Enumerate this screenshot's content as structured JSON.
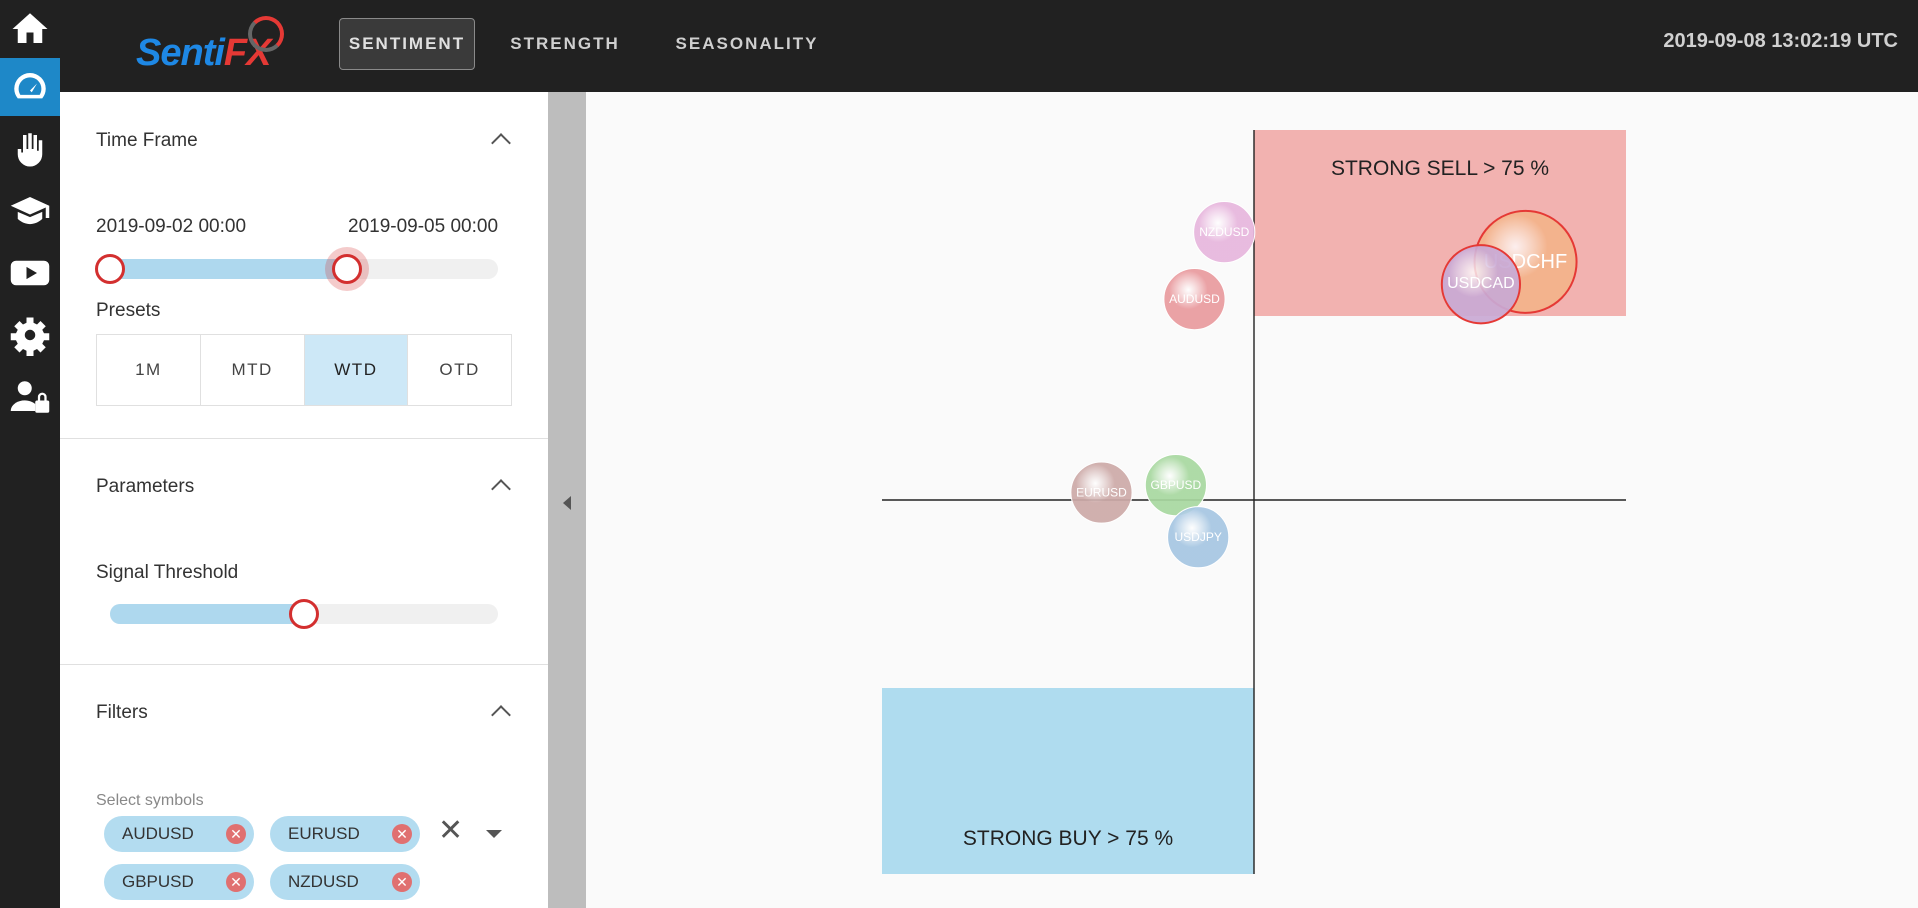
{
  "app": {
    "brand_left": "Senti",
    "brand_right": "FX"
  },
  "rail": {
    "items": [
      {
        "name": "home-icon",
        "active": false
      },
      {
        "name": "dashboard-gauge-icon",
        "active": true
      },
      {
        "name": "hand-stop-icon",
        "active": false
      },
      {
        "name": "graduation-cap-icon",
        "active": false
      },
      {
        "name": "video-play-icon",
        "active": false
      },
      {
        "name": "puzzle-gear-icon",
        "active": false
      },
      {
        "name": "user-lock-icon",
        "active": false
      }
    ]
  },
  "nav": {
    "tabs": [
      {
        "label": "SENTIMENT",
        "active": true
      },
      {
        "label": "STRENGTH",
        "active": false
      },
      {
        "label": "SEASONALITY",
        "active": false
      }
    ],
    "datetime": "2019-09-08 13:02:19 UTC"
  },
  "sidebar": {
    "timeframe": {
      "title": "Time Frame",
      "start_label": "2019-09-02 00:00",
      "end_label": "2019-09-05 00:00",
      "range_start_fraction": 0.0,
      "range_end_fraction": 0.61
    },
    "presets": {
      "title": "Presets",
      "options": [
        {
          "label": "1M",
          "active": false
        },
        {
          "label": "MTD",
          "active": false
        },
        {
          "label": "WTD",
          "active": true
        },
        {
          "label": "OTD",
          "active": false
        }
      ]
    },
    "parameters": {
      "title": "Parameters",
      "threshold_label": "Signal Threshold",
      "threshold_fraction": 0.5
    },
    "filters": {
      "title": "Filters",
      "select_label": "Select symbols",
      "chips": [
        "AUDUSD",
        "EURUSD",
        "GBPUSD",
        "NZDUSD"
      ],
      "clear_glyph": "✕",
      "chip_remove_glyph": "✕"
    }
  },
  "colors": {
    "accent": "#1e88c8",
    "sell_zone": "#f2b2b0",
    "buy_zone": "#afdcef",
    "thumb": "#d32f2f"
  },
  "chart_data": {
    "type": "scatter",
    "zones": [
      {
        "label": "STRONG SELL > 75 %",
        "color": "#f2b2b0"
      },
      {
        "label": "STRONG BUY > 75 %",
        "color": "#afdcef"
      }
    ],
    "points": [
      {
        "name": "NZDUSD",
        "x": -0.08,
        "y": 0.72,
        "size": 0.9,
        "color": "#e7b6dd"
      },
      {
        "name": "AUDUSD",
        "x": -0.16,
        "y": 0.54,
        "size": 0.9,
        "color": "#e99a9e"
      },
      {
        "name": "GBPUSD",
        "x": -0.21,
        "y": 0.04,
        "size": 0.9,
        "color": "#a8d8a0"
      },
      {
        "name": "EURUSD",
        "x": -0.41,
        "y": 0.02,
        "size": 0.9,
        "color": "#cdaaa8"
      },
      {
        "name": "USDJPY",
        "x": -0.15,
        "y": -0.1,
        "size": 0.9,
        "color": "#a6c6e2"
      },
      {
        "name": "USDCHF",
        "x": 0.73,
        "y": 0.64,
        "size": 1.5,
        "color": "#f3b38a"
      },
      {
        "name": "USDCAD",
        "x": 0.61,
        "y": 0.58,
        "size": 1.15,
        "color": "#c9a9d4"
      }
    ]
  }
}
